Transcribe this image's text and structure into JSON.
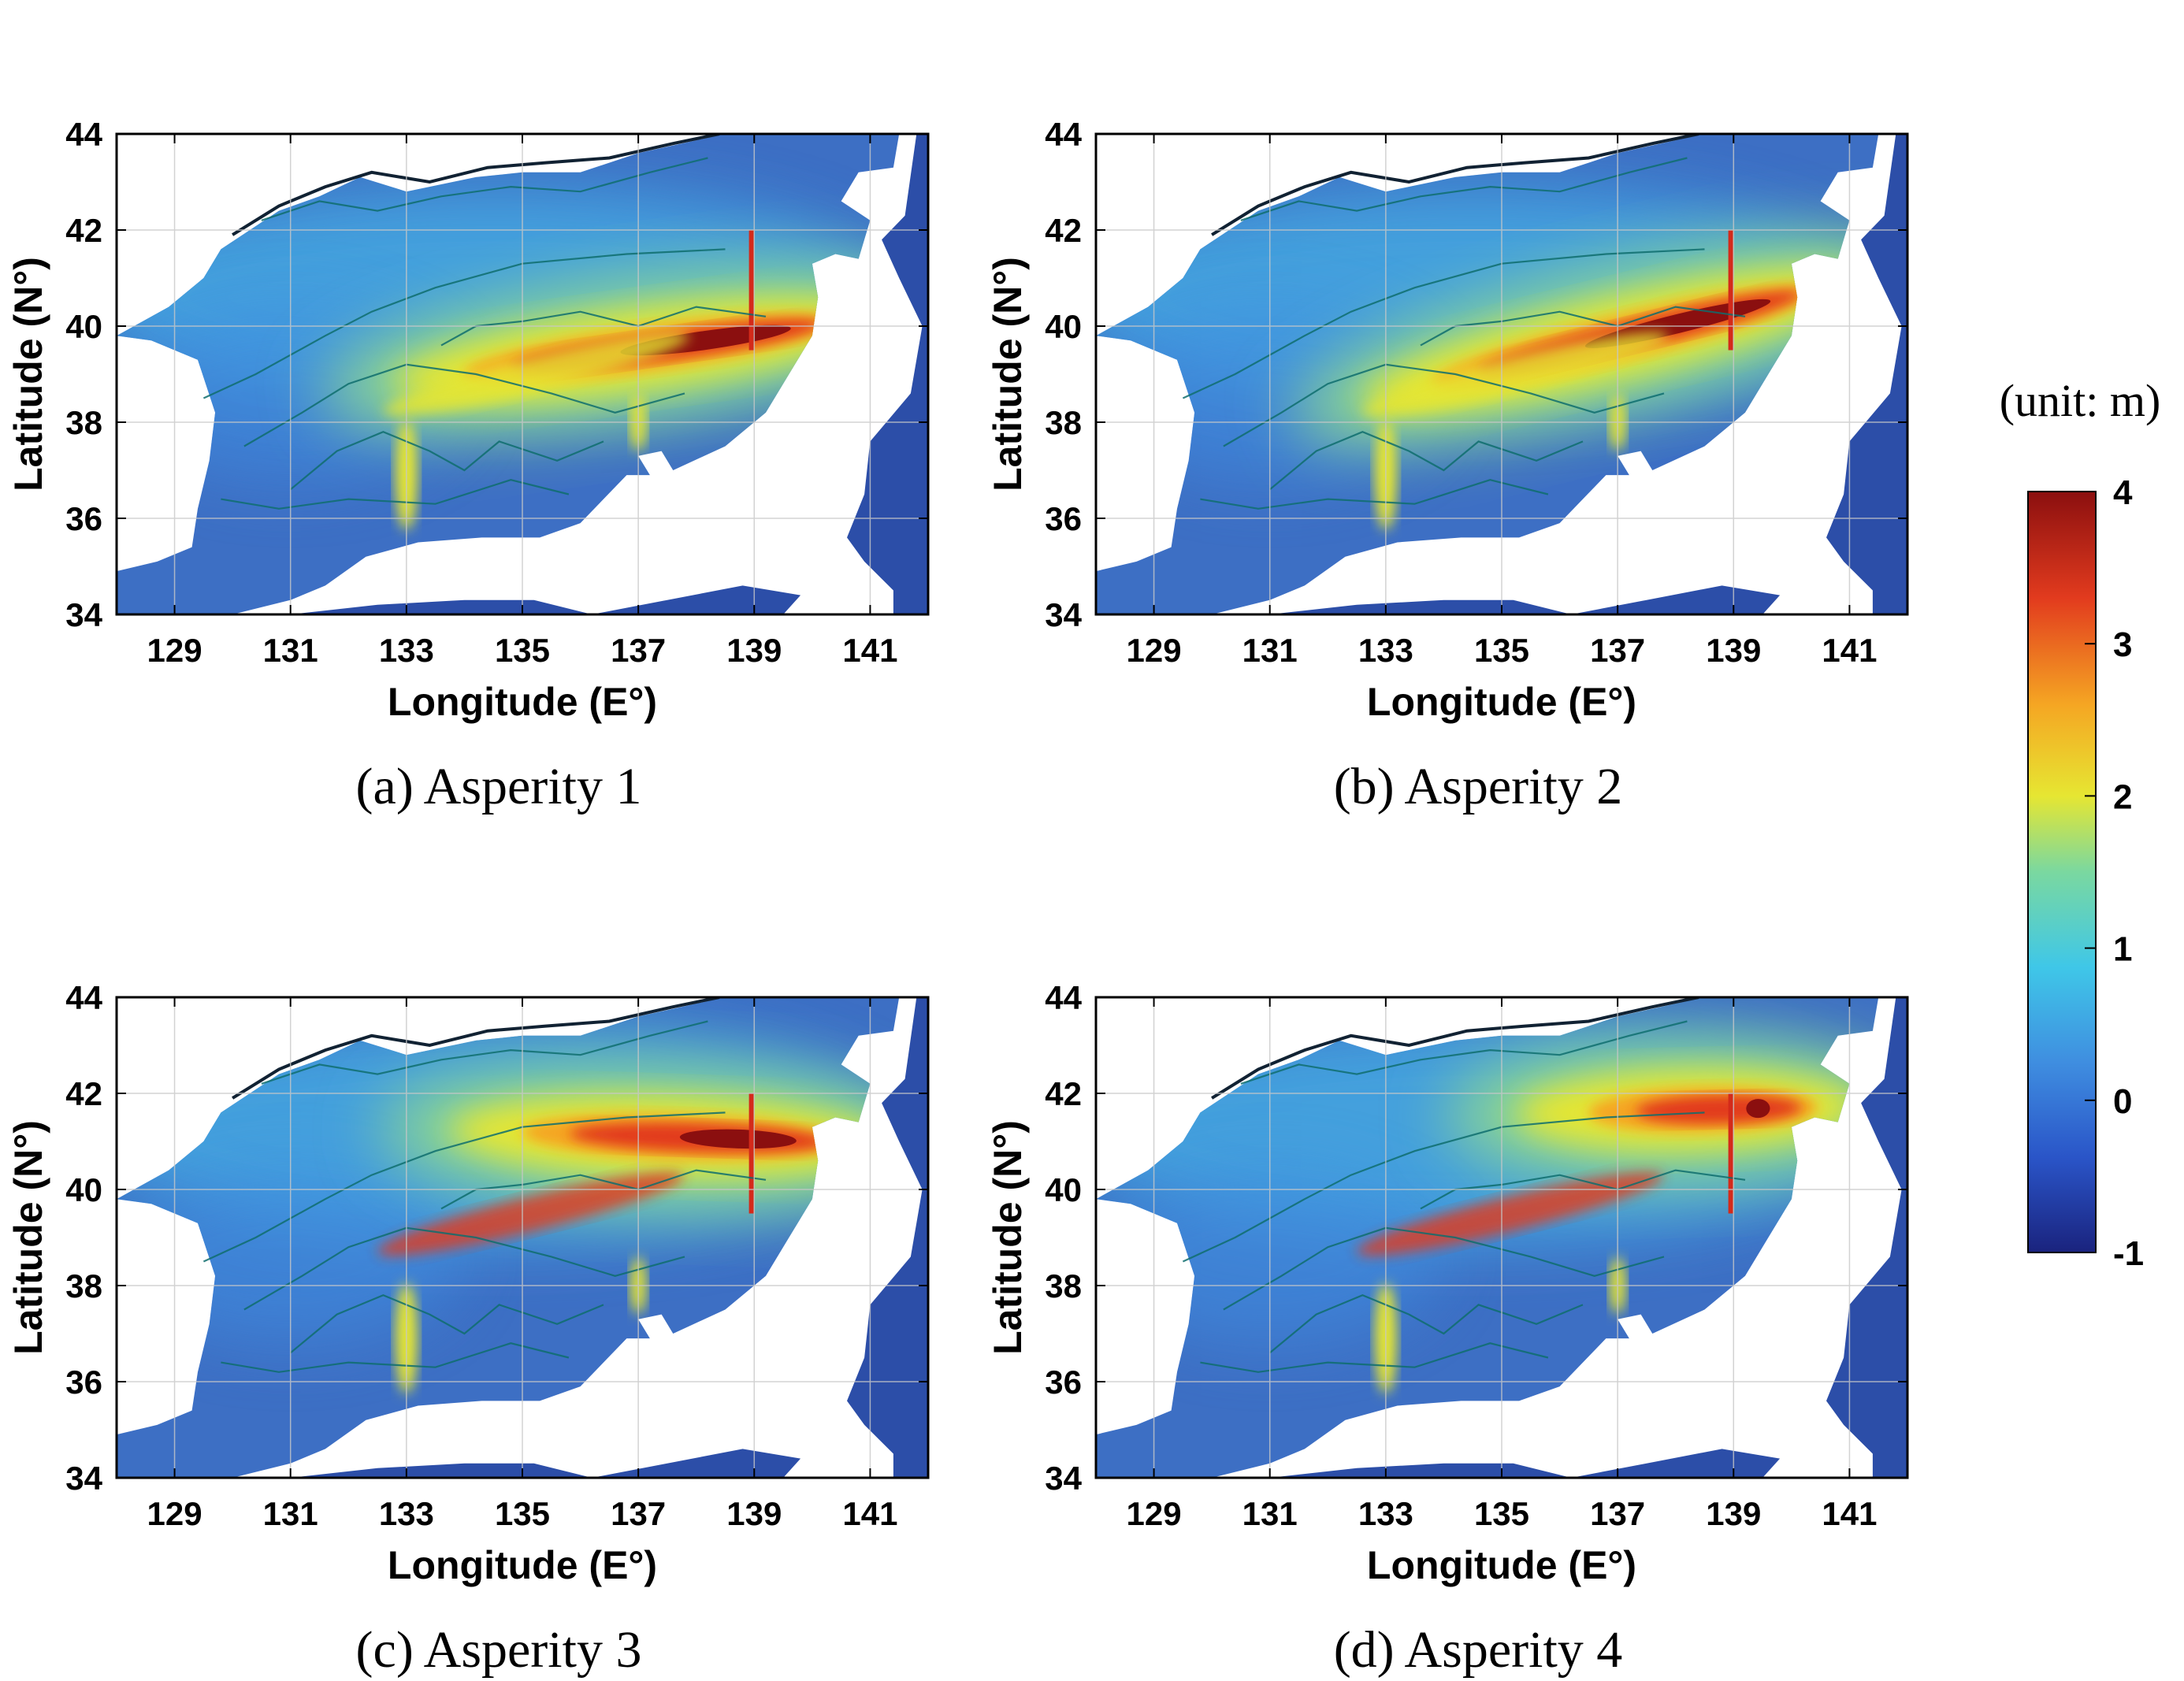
{
  "panels": [
    {
      "id": "a",
      "caption": "(a) Asperity 1",
      "hotspot": {
        "lon1": 134.0,
        "lat1": 39.0,
        "lon2": 139.9,
        "lat2": 40.0,
        "ridge": "fault-east"
      }
    },
    {
      "id": "b",
      "caption": "(b) Asperity 2",
      "hotspot": {
        "lon1": 133.8,
        "lat1": 38.8,
        "lon2": 139.9,
        "lat2": 40.6,
        "ridge": "fault-east"
      }
    },
    {
      "id": "c",
      "caption": "(c) Asperity 3",
      "hotspot": {
        "lon1": 135.0,
        "lat1": 41.2,
        "lon2": 140.0,
        "lat2": 41.0,
        "ridge": "fault-north"
      }
    },
    {
      "id": "d",
      "caption": "(d) Asperity 4",
      "hotspot": {
        "lon1": 136.5,
        "lat1": 41.6,
        "lon2": 139.9,
        "lat2": 41.7,
        "ridge": "fault-north"
      }
    }
  ],
  "axes": {
    "xlabel": "Longitude (E°)",
    "ylabel": "Latitude (N°)",
    "xlim": [
      128,
      142
    ],
    "ylim": [
      34,
      44
    ],
    "xticks": [
      "129",
      "131",
      "133",
      "135",
      "137",
      "139",
      "141"
    ],
    "yticks": [
      "34",
      "36",
      "38",
      "40",
      "42",
      "44"
    ],
    "grid": true
  },
  "colorbar": {
    "title": "(unit: m)",
    "ticks": [
      "-1",
      "0",
      "1",
      "2",
      "3",
      "4"
    ],
    "range": [
      -1,
      4
    ],
    "colormap": [
      "#1a237e",
      "#2a55c8",
      "#3f8ee0",
      "#3fc7e8",
      "#7ad8a0",
      "#e6e632",
      "#f5a623",
      "#e23b1e",
      "#8b0f0f"
    ]
  },
  "colors": {
    "sea_low": "#3d6fc4",
    "sea_mid": "#44a6e0",
    "land": "#ffffff",
    "contour": "#0f6e6e"
  }
}
